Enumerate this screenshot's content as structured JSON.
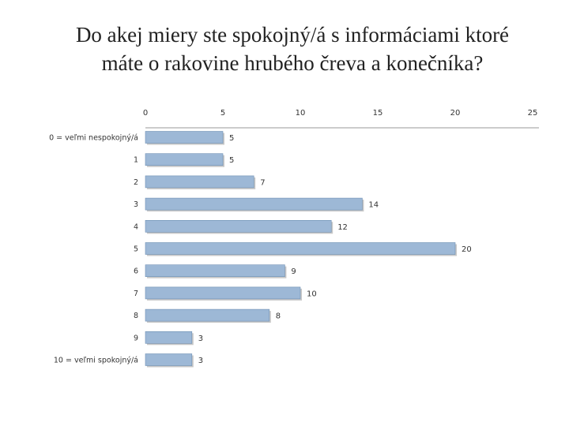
{
  "title_lines": [
    "Do akej miery ste spokojný/á s informáciami ktoré",
    "máte o rakovine hrubého čreva a konečníka?"
  ],
  "colors": {
    "bar_fill": "#9DB8D6",
    "bar_stroke": "#6E8FB3",
    "bar_shadow": "#C8C8C8",
    "axis": "#999999"
  },
  "chart_data": {
    "type": "bar",
    "orientation": "horizontal",
    "title": "Do akej miery ste spokojný/á s informáciami ktoré máte o rakovine hrubého čreva a konečníka?",
    "categories": [
      "0 = veľmi nespokojný/á",
      "1",
      "2",
      "3",
      "4",
      "5",
      "6",
      "7",
      "8",
      "9",
      "10 = veľmi spokojný/á"
    ],
    "values": [
      5,
      5,
      7,
      14,
      12,
      20,
      9,
      10,
      8,
      3,
      3
    ],
    "value_labels": [
      "5",
      "5",
      "7",
      "14",
      "12",
      "20",
      "9",
      "10",
      "8",
      "3",
      "3"
    ],
    "xlim": [
      0,
      25
    ],
    "x_ticks": [
      0,
      5,
      10,
      15,
      20,
      25
    ],
    "x_tick_labels": [
      "0",
      "5",
      "10",
      "15",
      "20",
      "25"
    ],
    "x_axis_position": "top",
    "grid": false,
    "legend": "none"
  }
}
